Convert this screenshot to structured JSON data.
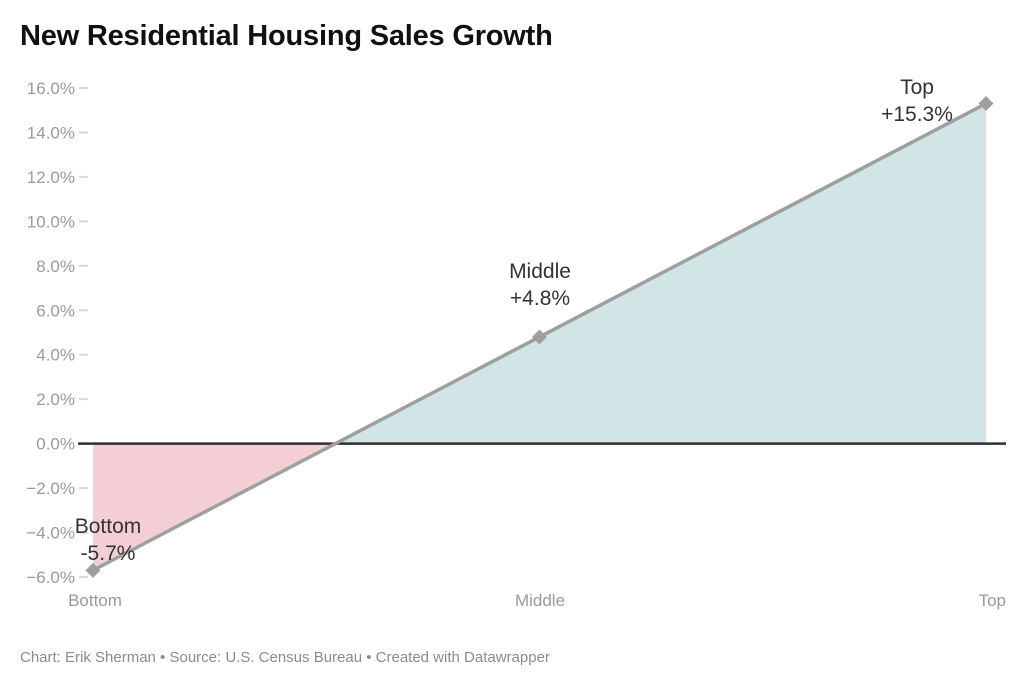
{
  "header": {
    "title": "New Residential Housing Sales Growth"
  },
  "footer": {
    "text": "Chart: Erik Sherman • Source: U.S. Census Bureau • Created with Datawrapper"
  },
  "chart_data": {
    "type": "area",
    "title": "New Residential Housing Sales Growth",
    "categories": [
      "Bottom",
      "Middle",
      "Top"
    ],
    "values": [
      -5.7,
      4.8,
      15.3
    ],
    "point_labels": [
      {
        "name": "Bottom",
        "value_label": "-5.7%"
      },
      {
        "name": "Middle",
        "value_label": "+4.8%"
      },
      {
        "name": "Top",
        "value_label": "+15.3%"
      }
    ],
    "xlabel": "",
    "ylabel": "",
    "ylim": [
      -6,
      16
    ],
    "ytick_step": 2,
    "ytick_labels": [
      "16.0%",
      "14.0%",
      "12.0%",
      "10.0%",
      "8.0%",
      "6.0%",
      "4.0%",
      "2.0%",
      "0.0%",
      "−2.0%",
      "−4.0%",
      "−6.0%"
    ],
    "grid": "ticks-only",
    "legend": "none",
    "zero_baseline": true,
    "colors": {
      "line": "#9f9f9f",
      "marker": "#9f9f9f",
      "area_positive": "#d1e4e6",
      "area_negative": "#f3cfd5",
      "zero_line": "#2f2f2f",
      "axis_text": "#9a9a9a",
      "tick_mark": "#d8d8d8",
      "point_label_text": "#333333"
    }
  }
}
